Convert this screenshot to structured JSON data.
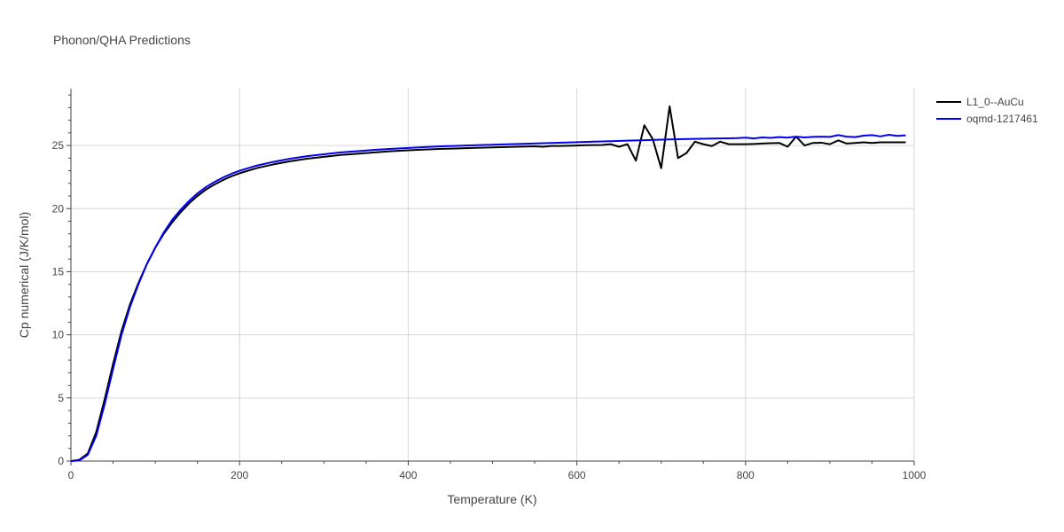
{
  "chart_data": {
    "type": "line",
    "title": "Phonon/QHA Predictions",
    "xlabel": "Temperature (K)",
    "ylabel": "Cp numerical (J/K/mol)",
    "xlim": [
      0,
      1000
    ],
    "ylim": [
      0,
      29.5
    ],
    "xticks": [
      0,
      200,
      400,
      600,
      800,
      1000
    ],
    "yticks": [
      0,
      5,
      10,
      15,
      20,
      25
    ],
    "grid": true,
    "legend_position": "top-right",
    "series": [
      {
        "name": "L1_0--AuCu",
        "color": "#000000",
        "x": [
          0,
          10,
          20,
          30,
          40,
          50,
          60,
          70,
          80,
          90,
          100,
          110,
          120,
          130,
          140,
          150,
          160,
          170,
          180,
          190,
          200,
          220,
          240,
          260,
          280,
          300,
          320,
          340,
          360,
          380,
          400,
          420,
          440,
          460,
          480,
          500,
          520,
          540,
          550,
          560,
          570,
          580,
          590,
          600,
          610,
          620,
          630,
          640,
          650,
          660,
          670,
          680,
          690,
          700,
          710,
          720,
          730,
          740,
          750,
          760,
          770,
          780,
          790,
          800,
          810,
          820,
          830,
          840,
          850,
          860,
          870,
          880,
          890,
          900,
          910,
          920,
          930,
          940,
          950,
          960,
          970,
          980,
          990
        ],
        "y": [
          0,
          0.1,
          0.6,
          2.3,
          4.9,
          7.7,
          10.3,
          12.4,
          14.1,
          15.6,
          16.9,
          18.0,
          18.9,
          19.7,
          20.4,
          21.0,
          21.5,
          21.9,
          22.25,
          22.55,
          22.8,
          23.2,
          23.5,
          23.75,
          23.95,
          24.1,
          24.25,
          24.35,
          24.45,
          24.55,
          24.62,
          24.68,
          24.73,
          24.77,
          24.81,
          24.85,
          24.88,
          24.92,
          24.93,
          24.9,
          24.96,
          24.96,
          24.98,
          25.0,
          25.02,
          25.03,
          25.04,
          25.1,
          24.9,
          25.1,
          23.8,
          26.6,
          25.5,
          23.2,
          28.1,
          24.0,
          24.4,
          25.3,
          25.1,
          24.95,
          25.3,
          25.1,
          25.1,
          25.1,
          25.12,
          25.15,
          25.18,
          25.2,
          24.9,
          25.7,
          25.0,
          25.2,
          25.22,
          25.1,
          25.4,
          25.15,
          25.2,
          25.25,
          25.2,
          25.25,
          25.25,
          25.25,
          25.25
        ]
      },
      {
        "name": "oqmd-1217461",
        "color": "#0000ee",
        "x": [
          0,
          10,
          20,
          30,
          40,
          50,
          60,
          70,
          80,
          90,
          100,
          110,
          120,
          130,
          140,
          150,
          160,
          170,
          180,
          190,
          200,
          220,
          240,
          260,
          280,
          300,
          320,
          340,
          360,
          380,
          400,
          420,
          440,
          460,
          480,
          500,
          520,
          540,
          560,
          580,
          600,
          620,
          640,
          660,
          680,
          700,
          720,
          740,
          760,
          780,
          790,
          800,
          810,
          820,
          830,
          840,
          850,
          860,
          870,
          880,
          890,
          900,
          910,
          920,
          930,
          940,
          950,
          960,
          970,
          980,
          990
        ],
        "y": [
          0,
          0.05,
          0.5,
          2.0,
          4.5,
          7.3,
          10.0,
          12.2,
          14.0,
          15.6,
          16.9,
          18.1,
          19.1,
          19.9,
          20.6,
          21.2,
          21.7,
          22.1,
          22.45,
          22.75,
          23.0,
          23.4,
          23.7,
          23.95,
          24.15,
          24.3,
          24.45,
          24.55,
          24.65,
          24.73,
          24.8,
          24.87,
          24.93,
          24.98,
          25.02,
          25.06,
          25.1,
          25.14,
          25.18,
          25.22,
          25.26,
          25.3,
          25.34,
          25.38,
          25.42,
          25.46,
          25.5,
          25.52,
          25.55,
          25.57,
          25.58,
          25.62,
          25.56,
          25.64,
          25.6,
          25.66,
          25.62,
          25.7,
          25.64,
          25.68,
          25.7,
          25.68,
          25.82,
          25.7,
          25.66,
          25.78,
          25.82,
          25.72,
          25.85,
          25.76,
          25.8
        ]
      }
    ]
  }
}
